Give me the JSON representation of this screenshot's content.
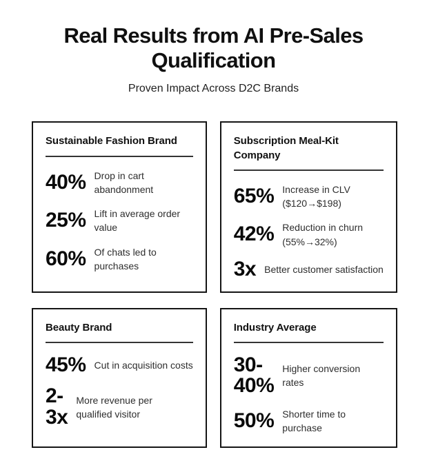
{
  "header": {
    "title": "Real Results from AI Pre-Sales Qualification",
    "subtitle": "Proven Impact Across D2C Brands"
  },
  "colors": {
    "background": "#ffffff",
    "text_primary": "#101010",
    "text_secondary": "#2d2d2d",
    "card_border": "#141414",
    "rule": "#333333"
  },
  "cards": [
    {
      "title": "Sustainable Fashion Brand",
      "stats": [
        {
          "value": "40%",
          "label": "Drop in cart\nabandonment"
        },
        {
          "value": "25%",
          "label": "Lift in average order\nvalue"
        },
        {
          "value": "60%",
          "label": "Of chats led to\npurchases"
        }
      ]
    },
    {
      "title": "Subscription Meal-Kit Company",
      "stats": [
        {
          "value": "65%",
          "label": "Increase in CLV\n($120→$198)"
        },
        {
          "value": "42%",
          "label": "Reduction in churn\n(55%→32%)"
        },
        {
          "value": "3x",
          "label": "Better customer satisfaction"
        }
      ]
    },
    {
      "title": "Beauty Brand",
      "stats": [
        {
          "value": "45%",
          "label": "Cut in acquisition costs"
        },
        {
          "value": "2-\n3x",
          "label": "More revenue per\nqualified visitor"
        }
      ]
    },
    {
      "title": "Industry Average",
      "stats": [
        {
          "value": "30-\n40%",
          "label": "Higher conversion\nrates"
        },
        {
          "value": "50%",
          "label": "Shorter time to\npurchase"
        }
      ]
    }
  ]
}
